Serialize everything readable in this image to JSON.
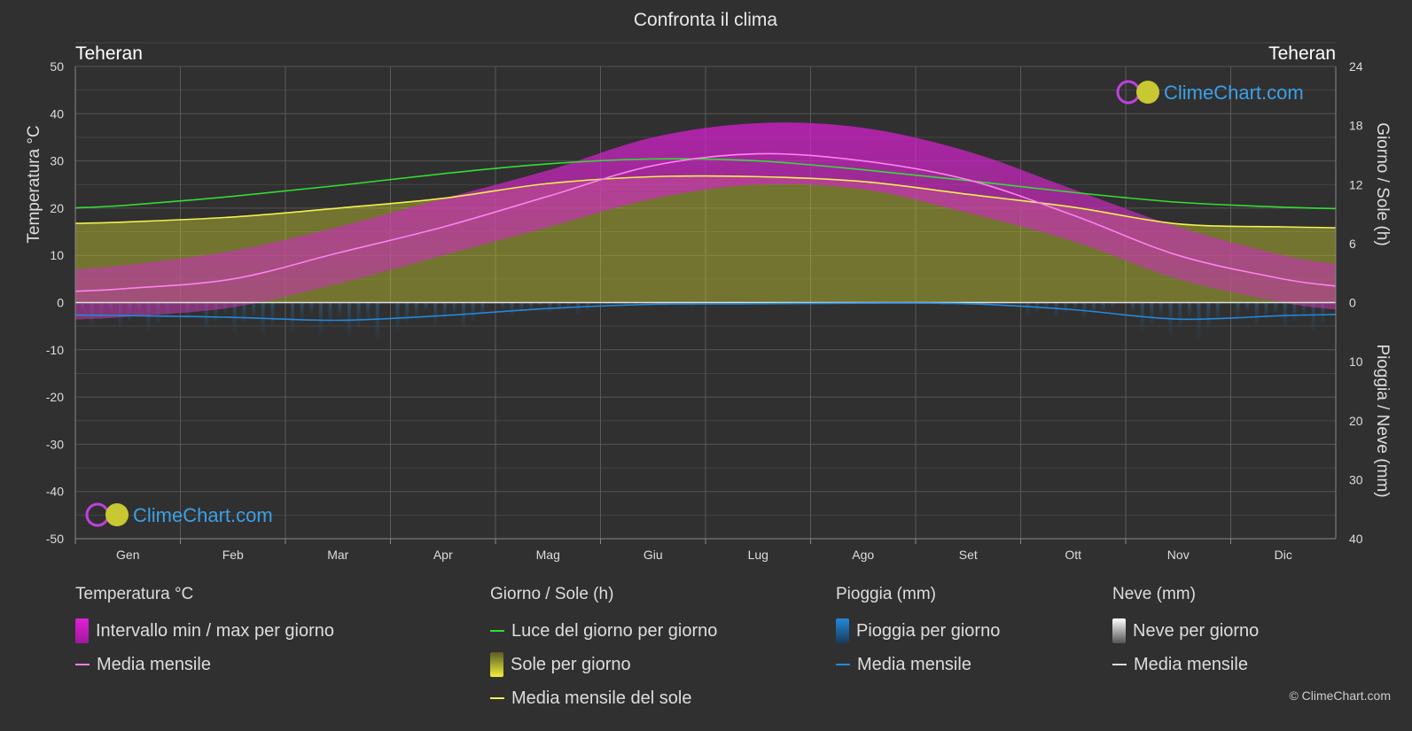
{
  "chart_data": {
    "type": "area",
    "title": "Confronta il clima",
    "left_city": "Teheran",
    "right_city": "Teheran",
    "months": [
      "Gen",
      "Feb",
      "Mar",
      "Apr",
      "Mag",
      "Giu",
      "Lug",
      "Ago",
      "Set",
      "Ott",
      "Nov",
      "Dic"
    ],
    "left_axis": {
      "label": "Temperatura °C",
      "range": [
        -50,
        50
      ],
      "ticks": [
        50,
        40,
        30,
        20,
        10,
        0,
        -10,
        -20,
        -30,
        -40,
        -50
      ]
    },
    "right_axis_top": {
      "label": "Giorno / Sole (h)",
      "range": [
        0,
        24
      ],
      "ticks": [
        24,
        18,
        12,
        6,
        0
      ]
    },
    "right_axis_bottom": {
      "label": "Pioggia / Neve (mm)",
      "range": [
        0,
        40
      ],
      "ticks": [
        10,
        20,
        30,
        40
      ]
    },
    "series": [
      {
        "key": "temp_max",
        "values": [
          8,
          11,
          16,
          22,
          28,
          35,
          38,
          37,
          32,
          24,
          16,
          10
        ]
      },
      {
        "key": "temp_min",
        "values": [
          -3,
          -1,
          4,
          10,
          16,
          22,
          25,
          24,
          19,
          13,
          5,
          0
        ]
      },
      {
        "key": "temp_mean",
        "values": [
          3,
          5,
          10.5,
          16,
          22.5,
          29,
          31.5,
          30,
          26,
          18.5,
          10,
          5
        ]
      },
      {
        "key": "daylight",
        "values": [
          9.9,
          10.8,
          11.9,
          13.1,
          14.1,
          14.6,
          14.4,
          13.5,
          12.4,
          11.2,
          10.2,
          9.7
        ]
      },
      {
        "key": "sunshine",
        "values": [
          8.2,
          8.7,
          9.6,
          10.6,
          12.1,
          12.8,
          12.8,
          12.3,
          11.0,
          9.7,
          8.0,
          7.7
        ]
      },
      {
        "key": "rain_mean",
        "values": [
          2.2,
          2.5,
          3.0,
          2.2,
          1.0,
          0.3,
          0.2,
          0.1,
          0.2,
          1.2,
          2.8,
          2.2
        ]
      }
    ]
  },
  "legend": {
    "temperature": {
      "title": "Temperatura °C",
      "range_label": "Intervallo min / max per giorno",
      "mean_label": "Media mensile"
    },
    "day_sun": {
      "title": "Giorno / Sole (h)",
      "daylight_label": "Luce del giorno per giorno",
      "sun_label": "Sole per giorno",
      "sun_mean_label": "Media mensile del sole"
    },
    "rain": {
      "title": "Pioggia (mm)",
      "rain_label": "Pioggia per giorno",
      "mean_label": "Media mensile"
    },
    "snow": {
      "title": "Neve (mm)",
      "snow_label": "Neve per giorno",
      "mean_label": "Media mensile"
    }
  },
  "watermark": "ClimeChart.com",
  "copyright": "© ClimeChart.com",
  "colors": {
    "background": "#303030",
    "temp_range": "#e020d8",
    "temp_mean": "#ff80f0",
    "daylight": "#33dd33",
    "sunshine": "#c8c832",
    "sun_mean": "#f0f050",
    "rain": "#2288dd",
    "snow": "#dddddd"
  }
}
